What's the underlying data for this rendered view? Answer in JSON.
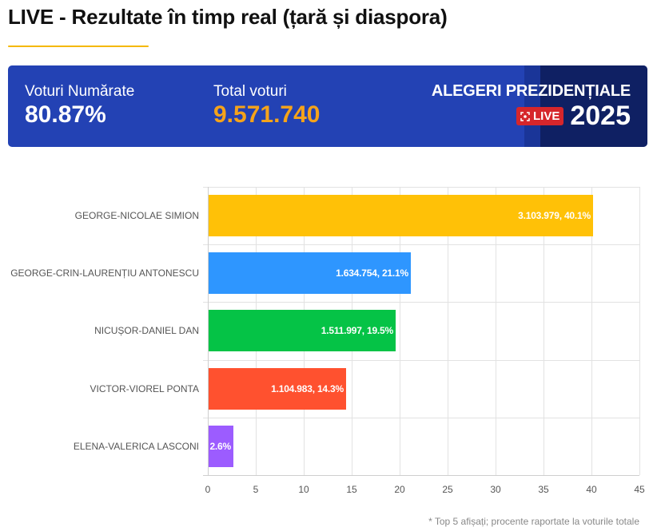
{
  "header": {
    "title": "LIVE - Rezultate în timp real (țară și diaspora)",
    "accent_color": "#f5b800"
  },
  "stats": {
    "counted_label": "Voturi Numărate",
    "counted_value": "80.87%",
    "total_label": "Total voturi",
    "total_value": "9.571.740",
    "election_title": "ALEGERI PREZIDENȚIALE",
    "live_badge": "LIVE",
    "live_icon": "record-icon",
    "year": "2025",
    "colors": {
      "panel": "#2342b4",
      "panel_dark": "#0f2063",
      "total_value": "#f5a31a",
      "live_badge": "#d6262b"
    }
  },
  "chart_data": {
    "type": "bar",
    "orientation": "horizontal",
    "title": "",
    "xlabel": "",
    "ylabel": "",
    "xlim": [
      0,
      45
    ],
    "x_ticks": [
      "0",
      "5",
      "10",
      "15",
      "20",
      "25",
      "30",
      "35",
      "40",
      "45"
    ],
    "grid": true,
    "categories": [
      "GEORGE-NICOLAE SIMION",
      "GEORGE-CRIN-LAURENȚIU ANTONESCU",
      "NICUȘOR-DANIEL DAN",
      "VICTOR-VIOREL PONTA",
      "ELENA-VALERICA LASCONI"
    ],
    "values": [
      40.1,
      21.1,
      19.5,
      14.3,
      2.6
    ],
    "votes": [
      "3.103.979",
      "1.634.754",
      "1.511.997",
      "1.104.983",
      ""
    ],
    "data_labels": [
      "3.103.979, 40.1%",
      "1.634.754, 21.1%",
      "1.511.997, 19.5%",
      "1.104.983, 14.3%",
      "2.6%"
    ],
    "colors": [
      "#ffc107",
      "#2e96ff",
      "#05c346",
      "#ff512f",
      "#9c5cff"
    ],
    "footnote": "* Top 5 afișați; procente raportate la voturile totale"
  }
}
